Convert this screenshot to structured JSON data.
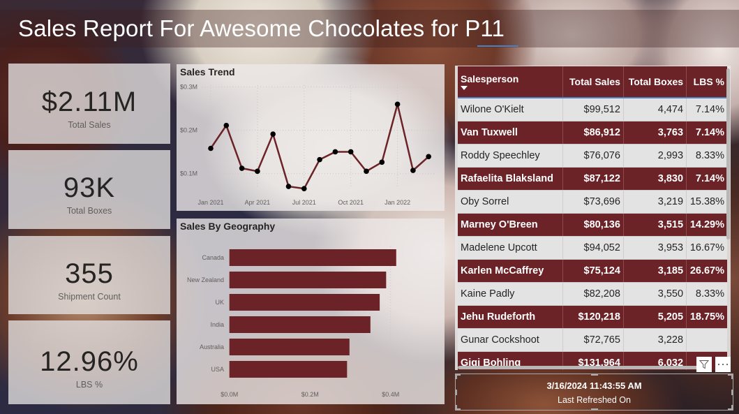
{
  "header": {
    "title": "Sales Report For Awesome Chocolates for P11"
  },
  "kpis": [
    {
      "value": "$2.11M",
      "label": "Total Sales"
    },
    {
      "value": "93K",
      "label": "Total Boxes"
    },
    {
      "value": "355",
      "label": "Shipment Count"
    },
    {
      "value": "12.96%",
      "label": "LBS %"
    }
  ],
  "colors": {
    "accent": "#6b2328",
    "header_underline": "#4e7fbf",
    "table_light_row": "#e4e3e3"
  },
  "sales_trend": {
    "title": "Sales Trend"
  },
  "sales_geo": {
    "title": "Sales By Geography"
  },
  "chart_data": [
    {
      "type": "line",
      "title": "Sales Trend",
      "xlabel": "",
      "ylabel": "",
      "x": [
        "Jan 2021",
        "Feb 2021",
        "Mar 2021",
        "Apr 2021",
        "May 2021",
        "Jun 2021",
        "Jul 2021",
        "Aug 2021",
        "Sep 2021",
        "Oct 2021",
        "Nov 2021",
        "Dec 2021",
        "Jan 2022",
        "Feb 2022",
        "Mar 2022"
      ],
      "x_ticks": [
        "Jan 2021",
        "Apr 2021",
        "Jul 2021",
        "Oct 2021",
        "Jan 2022"
      ],
      "y_ticks": [
        "$0.1M",
        "$0.2M",
        "$0.3M"
      ],
      "values": [
        0.16,
        0.213,
        0.114,
        0.107,
        0.193,
        0.072,
        0.067,
        0.134,
        0.152,
        0.152,
        0.107,
        0.128,
        0.262,
        0.109,
        0.141
      ],
      "unit": "$M",
      "ylim": [
        0.04,
        0.3
      ],
      "grid": true,
      "line_color": "#6b2328",
      "marker_color": "#000000"
    },
    {
      "type": "bar",
      "orientation": "horizontal",
      "title": "Sales By Geography",
      "categories": [
        "Canada",
        "New Zealand",
        "UK",
        "India",
        "Australia",
        "USA"
      ],
      "values": [
        0.414,
        0.389,
        0.373,
        0.35,
        0.298,
        0.292
      ],
      "unit": "$M",
      "x_ticks": [
        "$0.0M",
        "$0.2M",
        "$0.4M"
      ],
      "xlim": [
        0,
        0.44
      ],
      "grid": true,
      "bar_color": "#6b2328"
    }
  ],
  "table": {
    "columns": [
      "Salesperson",
      "Total Sales",
      "Total Boxes",
      "LBS %"
    ],
    "rows": [
      [
        "Wilone O'Kielt",
        "$99,512",
        "4,474",
        "7.14%"
      ],
      [
        "Van Tuxwell",
        "$86,912",
        "3,763",
        "7.14%"
      ],
      [
        "Roddy Speechley",
        "$76,076",
        "2,993",
        "8.33%"
      ],
      [
        "Rafaelita Blaksland",
        "$87,122",
        "3,830",
        "7.14%"
      ],
      [
        "Oby Sorrel",
        "$73,696",
        "3,219",
        "15.38%"
      ],
      [
        "Marney O'Breen",
        "$80,136",
        "3,515",
        "14.29%"
      ],
      [
        "Madelene Upcott",
        "$94,052",
        "3,953",
        "16.67%"
      ],
      [
        "Karlen McCaffrey",
        "$75,124",
        "3,185",
        "26.67%"
      ],
      [
        "Kaine Padly",
        "$82,208",
        "3,550",
        "8.33%"
      ],
      [
        "Jehu Rudeforth",
        "$120,218",
        "5,205",
        "18.75%"
      ],
      [
        "Gunar Cockshoot",
        "$72,765",
        "3,228",
        ""
      ],
      [
        "Gigi Bohling",
        "$131,964",
        "6,032",
        ""
      ]
    ]
  },
  "refresh": {
    "datetime": "3/16/2024 11:43:55 AM",
    "label": "Last Refreshed On"
  }
}
